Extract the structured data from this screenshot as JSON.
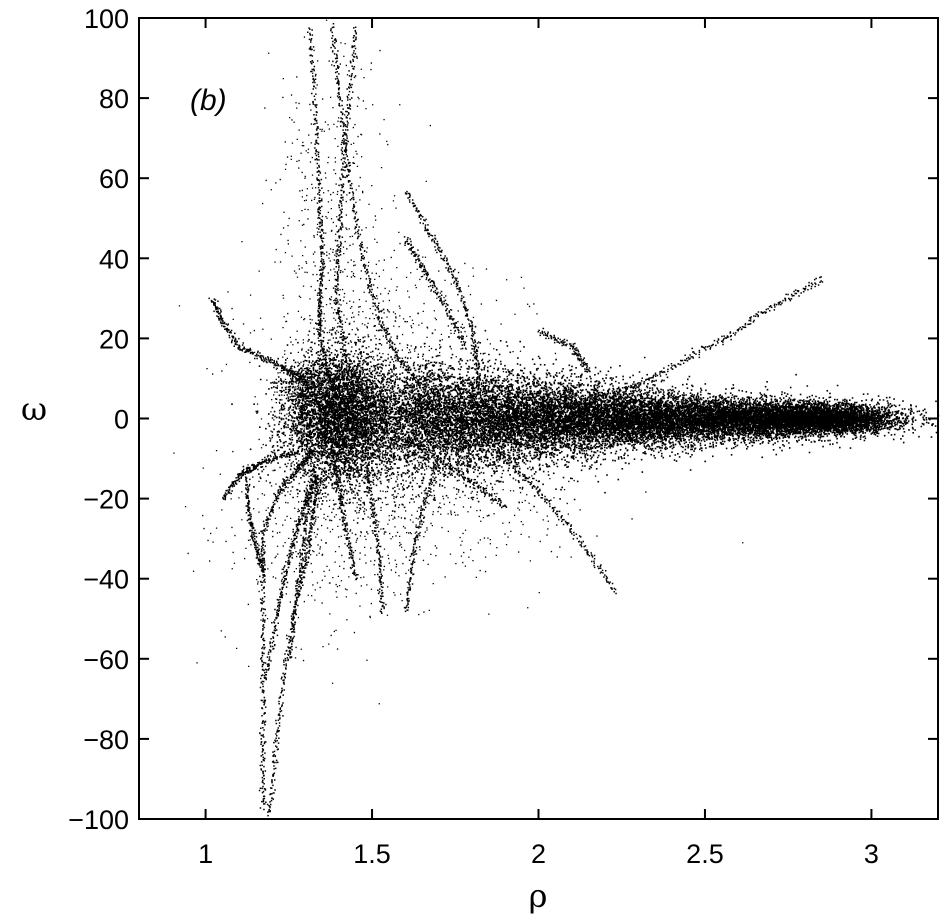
{
  "chart_data": {
    "type": "scatter",
    "title": "",
    "panel_label": "(b)",
    "xlabel": "ρ",
    "ylabel": "ω",
    "xlim": [
      0.8,
      3.2
    ],
    "ylim": [
      -100,
      100
    ],
    "x_ticks": [
      1,
      1.5,
      2,
      2.5,
      3
    ],
    "x_tick_labels": [
      "1",
      "1.5",
      "2",
      "2.5",
      "3"
    ],
    "y_ticks": [
      -100,
      -80,
      -60,
      -40,
      -20,
      0,
      20,
      40,
      60,
      80,
      100
    ],
    "y_tick_labels": [
      "−100",
      "−80",
      "−60",
      "−40",
      "−20",
      "0",
      "20",
      "40",
      "60",
      "80",
      "100"
    ],
    "grid": false,
    "marker_color": "#000000",
    "dense_core": [
      {
        "x": 1.4,
        "y": 0,
        "spread_x": 0.08,
        "spread_y": 8
      },
      {
        "x": 1.7,
        "y": 0,
        "spread_x": 0.15,
        "spread_y": 7
      },
      {
        "x": 2.0,
        "y": 0,
        "spread_x": 0.15,
        "spread_y": 5
      },
      {
        "x": 2.3,
        "y": 0,
        "spread_x": 0.15,
        "spread_y": 3.5
      },
      {
        "x": 2.6,
        "y": 0,
        "spread_x": 0.15,
        "spread_y": 2.5
      },
      {
        "x": 2.85,
        "y": 0,
        "spread_x": 0.12,
        "spread_y": 1.8
      }
    ],
    "trajectories": [
      {
        "points": [
          [
            1.02,
            30
          ],
          [
            1.05,
            24
          ],
          [
            1.1,
            18
          ],
          [
            1.18,
            15
          ],
          [
            1.25,
            12
          ],
          [
            1.3,
            9
          ]
        ]
      },
      {
        "points": [
          [
            1.05,
            -20
          ],
          [
            1.1,
            -14
          ],
          [
            1.14,
            -12
          ],
          [
            1.2,
            -10
          ],
          [
            1.28,
            -8
          ]
        ]
      },
      {
        "points": [
          [
            1.12,
            -15
          ],
          [
            1.13,
            -25
          ],
          [
            1.15,
            -32
          ],
          [
            1.17,
            -38
          ]
        ]
      },
      {
        "points": [
          [
            1.17,
            -97
          ],
          [
            1.17,
            -80
          ],
          [
            1.17,
            -60
          ],
          [
            1.17,
            -40
          ],
          [
            1.17,
            -28
          ],
          [
            1.22,
            -18
          ],
          [
            1.28,
            -12
          ],
          [
            1.32,
            -8
          ]
        ]
      },
      {
        "points": [
          [
            1.19,
            -99
          ],
          [
            1.21,
            -80
          ],
          [
            1.24,
            -60
          ],
          [
            1.28,
            -40
          ],
          [
            1.3,
            -25
          ],
          [
            1.33,
            -12
          ]
        ]
      },
      {
        "points": [
          [
            1.18,
            -65
          ],
          [
            1.21,
            -50
          ],
          [
            1.24,
            -38
          ],
          [
            1.27,
            -28
          ],
          [
            1.3,
            -20
          ],
          [
            1.33,
            -14
          ]
        ]
      },
      {
        "points": [
          [
            1.25,
            -60
          ],
          [
            1.27,
            -45
          ],
          [
            1.3,
            -35
          ],
          [
            1.32,
            -25
          ],
          [
            1.34,
            -15
          ]
        ]
      },
      {
        "points": [
          [
            1.31,
            98
          ],
          [
            1.33,
            75
          ],
          [
            1.34,
            55
          ],
          [
            1.35,
            40
          ],
          [
            1.34,
            30
          ],
          [
            1.34,
            22
          ],
          [
            1.36,
            12
          ],
          [
            1.4,
            6
          ]
        ]
      },
      {
        "points": [
          [
            1.45,
            98
          ],
          [
            1.43,
            80
          ],
          [
            1.41,
            62
          ],
          [
            1.4,
            45
          ],
          [
            1.39,
            30
          ],
          [
            1.42,
            15
          ],
          [
            1.48,
            5
          ]
        ]
      },
      {
        "points": [
          [
            1.38,
            98
          ],
          [
            1.4,
            80
          ],
          [
            1.43,
            60
          ],
          [
            1.47,
            40
          ],
          [
            1.52,
            25
          ],
          [
            1.58,
            15
          ],
          [
            1.65,
            8
          ]
        ]
      },
      {
        "points": [
          [
            1.6,
            57
          ],
          [
            1.68,
            45
          ],
          [
            1.75,
            35
          ],
          [
            1.8,
            22
          ],
          [
            1.82,
            10
          ]
        ]
      },
      {
        "points": [
          [
            1.6,
            45
          ],
          [
            1.65,
            38
          ],
          [
            1.72,
            28
          ],
          [
            1.78,
            18
          ]
        ]
      },
      {
        "points": [
          [
            1.53,
            -48
          ],
          [
            1.52,
            -35
          ],
          [
            1.5,
            -22
          ],
          [
            1.48,
            -10
          ]
        ]
      },
      {
        "points": [
          [
            1.6,
            -48
          ],
          [
            1.62,
            -35
          ],
          [
            1.65,
            -22
          ],
          [
            1.7,
            -10
          ]
        ]
      },
      {
        "points": [
          [
            2.23,
            -43
          ],
          [
            2.12,
            -30
          ],
          [
            2.0,
            -18
          ],
          [
            1.88,
            -8
          ]
        ]
      },
      {
        "points": [
          [
            1.45,
            -40
          ],
          [
            1.42,
            -28
          ],
          [
            1.4,
            -18
          ],
          [
            1.38,
            -8
          ]
        ]
      },
      {
        "points": [
          [
            1.9,
            -22
          ],
          [
            1.8,
            -16
          ],
          [
            1.7,
            -10
          ],
          [
            1.6,
            -5
          ]
        ]
      },
      {
        "points": [
          [
            2.85,
            35
          ],
          [
            2.7,
            28
          ],
          [
            2.55,
            20
          ],
          [
            2.4,
            13
          ],
          [
            2.25,
            7
          ],
          [
            2.1,
            3
          ]
        ]
      },
      {
        "points": [
          [
            2.0,
            22
          ],
          [
            2.1,
            18
          ],
          [
            2.15,
            12
          ]
        ]
      }
    ],
    "scatter_clusters": [
      {
        "x": 1.38,
        "y": 45,
        "spread_x": 0.09,
        "spread_y": 28
      },
      {
        "x": 1.3,
        "y": 8,
        "spread_x": 0.04,
        "spread_y": 3
      },
      {
        "x": 1.35,
        "y": -25,
        "spread_x": 0.15,
        "spread_y": 15
      },
      {
        "x": 1.55,
        "y": 20,
        "spread_x": 0.18,
        "spread_y": 12
      },
      {
        "x": 1.7,
        "y": -18,
        "spread_x": 0.22,
        "spread_y": 10
      }
    ]
  }
}
